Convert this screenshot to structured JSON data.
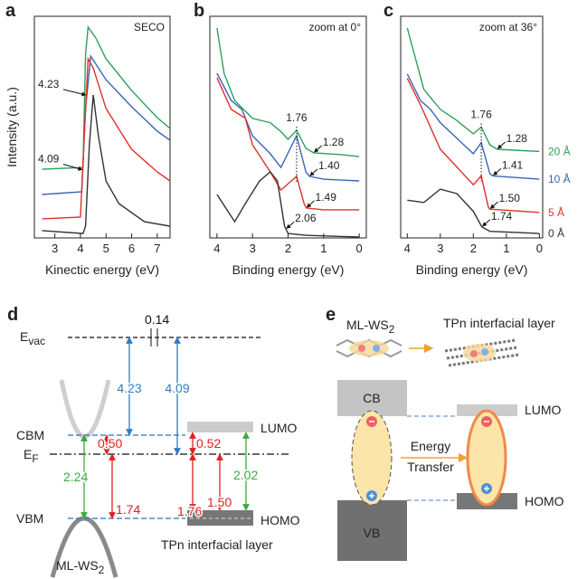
{
  "panel_letters": [
    "a",
    "b",
    "c",
    "d",
    "e"
  ],
  "chart_data": [
    {
      "type": "line",
      "title": "SECO",
      "x_label": "Kinectic energy (eV)",
      "y_label": "Intensity (a.u.)",
      "xlim": [
        2.2,
        7.5
      ],
      "xticks": [
        3,
        4,
        5,
        6,
        7
      ],
      "ylim": [
        0,
        100
      ],
      "series": [
        {
          "color": "#2ca05a",
          "x": [
            2.5,
            4.1,
            4.2,
            4.3,
            4.6,
            5.0,
            6.0,
            7.0,
            7.5
          ],
          "values": [
            31,
            31.8,
            82.9,
            95.1,
            90.2,
            80.8,
            66.5,
            54.3,
            49.4
          ]
        },
        {
          "color": "#3a64b8",
          "x": [
            2.5,
            4.05,
            4.2,
            4.4,
            4.7,
            5.0,
            6.0,
            7.0,
            7.5
          ],
          "values": [
            19.6,
            20.8,
            58.4,
            82,
            76.7,
            71.4,
            59.2,
            48.2,
            44.1
          ],
          "onset": 4.09
        },
        {
          "color": "#e0302a",
          "x": [
            2.5,
            4.0,
            4.15,
            4.3,
            4.5,
            5.0,
            6.0,
            7.0,
            7.5
          ],
          "values": [
            8.6,
            9.4,
            46,
            80.8,
            76.7,
            58.4,
            40,
            29.8,
            25.7
          ],
          "onset": 4.23
        },
        {
          "color": "#333333",
          "x": [
            2.5,
            4.1,
            4.2,
            4.35,
            4.5,
            4.7,
            5.0,
            5.5,
            6.5,
            7.5
          ],
          "values": [
            3.3,
            2.0,
            5.3,
            42,
            64.5,
            46,
            25.7,
            15.5,
            7.3,
            5.3
          ]
        }
      ]
    },
    {
      "type": "line",
      "title": "zoom at 0°",
      "x_label": "Binding energy (eV)",
      "xlim": [
        4.2,
        -0.2
      ],
      "xticks": [
        4,
        3,
        2,
        1,
        0
      ],
      "ylim": [
        0,
        100
      ],
      "peak": 1.76,
      "series": [
        {
          "color": "#2ca05a",
          "x": [
            4,
            3.8,
            3.5,
            3,
            2.5,
            2.2,
            2.0,
            1.76,
            1.5,
            1.28,
            0.5,
            0
          ],
          "values": [
            94.7,
            74.3,
            62,
            53.9,
            52,
            48,
            44.5,
            48.6,
            40.4,
            38.4,
            37.6,
            36.7
          ],
          "onset": 1.28
        },
        {
          "color": "#3a64b8",
          "x": [
            4,
            3.6,
            3.3,
            3,
            2.5,
            2.2,
            1.76,
            1.5,
            1.4,
            1,
            0
          ],
          "values": [
            74.3,
            62,
            58,
            46.1,
            38,
            31.8,
            46.1,
            29.8,
            27.8,
            26.5,
            25.7
          ],
          "onset": {
            "value": 1.4,
            "label": "1.40"
          }
        },
        {
          "color": "#e0302a",
          "x": [
            4,
            3.6,
            3.2,
            3,
            2.5,
            2.2,
            1.76,
            1.55,
            1.49,
            1,
            0
          ],
          "values": [
            72.2,
            58,
            54,
            42,
            29.8,
            21.6,
            27.8,
            15.5,
            13.5,
            12.7,
            12.7
          ],
          "onset": 1.49
        },
        {
          "color": "#333333",
          "x": [
            4,
            3.5,
            3.2,
            2.8,
            2.5,
            2.3,
            2.1,
            2.0,
            1.5,
            0
          ],
          "values": [
            19.6,
            7.3,
            15.5,
            25.7,
            29.8,
            25.7,
            5.3,
            2.0,
            1.2,
            0.4
          ],
          "onset": 2.06
        }
      ]
    },
    {
      "type": "line",
      "title": "zoom at 36°",
      "x_label": "Binding energy (eV)",
      "xlim": [
        4.2,
        -0.1
      ],
      "xticks": [
        4,
        3,
        2,
        1,
        0
      ],
      "ylim": [
        0,
        100
      ],
      "peak": 1.76,
      "series": [
        {
          "name": "20 Å",
          "color": "#2ca05a",
          "x": [
            4,
            3.5,
            3,
            2.5,
            2,
            1.76,
            1.5,
            1.28,
            0
          ],
          "values": [
            94.7,
            67,
            58,
            53,
            47,
            50,
            42,
            40,
            39
          ],
          "onset": 1.28
        },
        {
          "name": "10 Å",
          "color": "#3a64b8",
          "x": [
            4,
            3.6,
            3.3,
            3,
            2.5,
            2.0,
            1.76,
            1.5,
            1.41,
            0
          ],
          "values": [
            74,
            62,
            58,
            52,
            45,
            38,
            43,
            29,
            28,
            26.5
          ],
          "onset": 1.41
        },
        {
          "name": "5 Å",
          "color": "#e0302a",
          "x": [
            4,
            3.6,
            3.3,
            3,
            2.5,
            2,
            1.76,
            1.55,
            1.5,
            0
          ],
          "values": [
            72,
            60,
            50,
            40,
            32,
            24,
            28,
            14,
            13,
            11.5
          ],
          "onset": {
            "value": 1.5,
            "label": "1.50"
          }
        },
        {
          "name": "0 Å",
          "color": "#333333",
          "x": [
            4,
            3.5,
            3,
            2.5,
            2,
            1.74,
            1.5,
            0
          ],
          "values": [
            17,
            16,
            22,
            20,
            12,
            5,
            3,
            2
          ],
          "onset": 1.74
        }
      ]
    }
  ],
  "diagram_d": {
    "vacuum_level": [
      "E",
      "vac"
    ],
    "fermi_level": [
      "E",
      "F"
    ],
    "cbm": "CBM",
    "vbm": "VBM",
    "lumo": "LUMO",
    "homo": "HOMO",
    "layer": "TPn interfacial layer",
    "substrate": [
      "ML-WS",
      "2"
    ],
    "values": [
      0.14,
      4.23,
      4.09,
      {
        "value": 0.5,
        "label": "0.50"
      },
      1.74,
      2.24,
      0.52,
      1.76,
      {
        "value": 1.5,
        "label": "1.50"
      },
      2.02
    ]
  },
  "diagram_e": {
    "substrate": [
      "ML-WS",
      "2"
    ],
    "layer": "TPn interfacial layer",
    "cb": "CB",
    "vb": "VB",
    "lumo": "LUMO",
    "homo": "HOMO",
    "transfer": [
      "Energy",
      "Transfer"
    ]
  }
}
